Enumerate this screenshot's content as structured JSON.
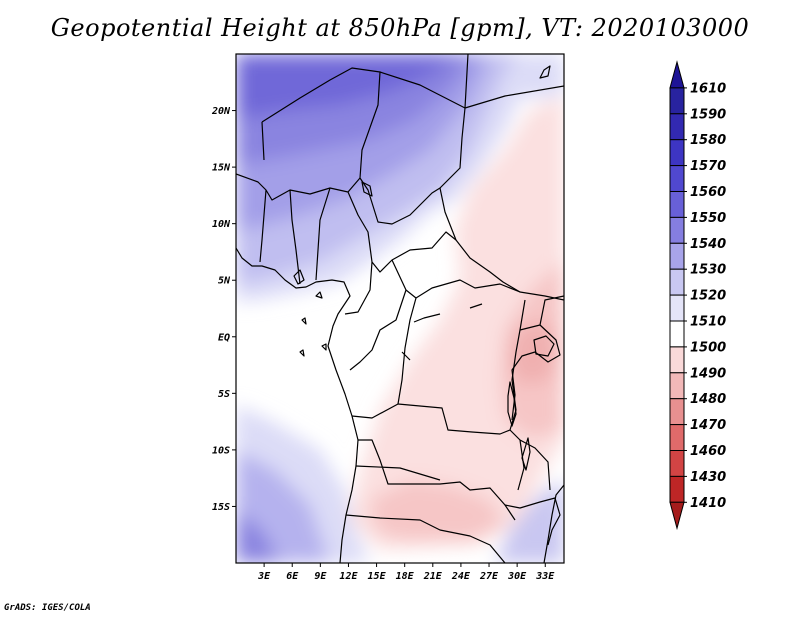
{
  "title": "Geopotential Height at 850hPa [gpm], VT: 2020103000",
  "credit": "GrADS: IGES/COLA",
  "map": {
    "lon_range": [
      0,
      35
    ],
    "lat_range": [
      -20,
      25
    ],
    "x_ticks": [
      "3E",
      "6E",
      "9E",
      "12E",
      "15E",
      "18E",
      "21E",
      "24E",
      "27E",
      "30E",
      "33E"
    ],
    "y_ticks": [
      "20N",
      "15N",
      "10N",
      "5N",
      "EQ",
      "5S",
      "10S",
      "15S"
    ]
  },
  "colorbar": {
    "levels": [
      "1610",
      "1590",
      "1580",
      "1570",
      "1560",
      "1550",
      "1540",
      "1530",
      "1520",
      "1510",
      "1500",
      "1490",
      "1480",
      "1470",
      "1460",
      "1430",
      "1410"
    ],
    "colors": [
      "#1e1496",
      "#28239f",
      "#3229b1",
      "#3d35c3",
      "#5048d0",
      "#6860d8",
      "#857ee0",
      "#a8a4ea",
      "#c9c8f2",
      "#e4e4f8",
      "#ffffff",
      "#fad9d9",
      "#f2b8b8",
      "#e89090",
      "#df6a6a",
      "#d24444",
      "#be2626",
      "#a51c1c"
    ]
  },
  "colors": {
    "high": "#6a62dc",
    "mid_high": "#c8c7f2",
    "neutral": "#ffffff",
    "mid_low": "#fad6d6",
    "low": "#f2b0b0"
  }
}
